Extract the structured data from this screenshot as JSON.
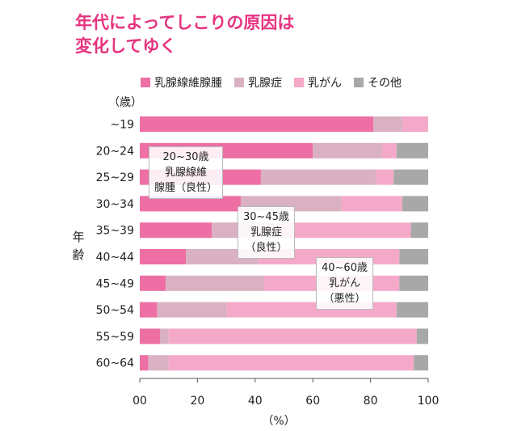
{
  "title": {
    "line1": "年代によってしこりの原因は",
    "line2": "変化してゆく"
  },
  "legend": [
    {
      "name": "乳腺線維腺腫",
      "color": "#ed6fa4"
    },
    {
      "name": "乳腺症",
      "color": "#d9b1c2"
    },
    {
      "name": "乳がん",
      "color": "#f4a9c9"
    },
    {
      "name": "その他",
      "color": "#a8a8a8"
    }
  ],
  "annotations": [
    {
      "lines": [
        "20~30歳",
        "乳腺線維",
        "腺腫（良性）"
      ]
    },
    {
      "lines": [
        "30~45歳",
        "乳腺症",
        "（良性）"
      ]
    },
    {
      "lines": [
        "40~60歳",
        "乳がん",
        "（悪性）"
      ]
    }
  ],
  "chart_data": {
    "type": "bar",
    "orientation": "horizontal",
    "stacked": true,
    "categories": [
      "~19",
      "20~24",
      "25~29",
      "30~34",
      "35~39",
      "40~44",
      "45~49",
      "50~54",
      "55~59",
      "60~64"
    ],
    "series": [
      {
        "name": "乳腺線維腺腫",
        "values": [
          81,
          60,
          42,
          35,
          25,
          16,
          9,
          6,
          7,
          3
        ]
      },
      {
        "name": "乳腺症",
        "values": [
          10,
          24,
          40,
          35,
          24,
          25,
          34,
          24,
          3,
          7
        ]
      },
      {
        "name": "乳がん",
        "values": [
          9,
          5,
          6,
          21,
          45,
          49,
          47,
          59,
          86,
          85
        ]
      },
      {
        "name": "その他",
        "values": [
          0,
          11,
          12,
          9,
          6,
          10,
          10,
          11,
          4,
          5
        ]
      }
    ],
    "xlabel": "（%）",
    "ylabel": "年齢",
    "y_unit_label": "（歳）",
    "xlim": [
      0,
      100
    ],
    "xticks": [
      "00",
      "20",
      "40",
      "60",
      "80",
      "100"
    ],
    "legend_position": "top",
    "grid": false
  }
}
